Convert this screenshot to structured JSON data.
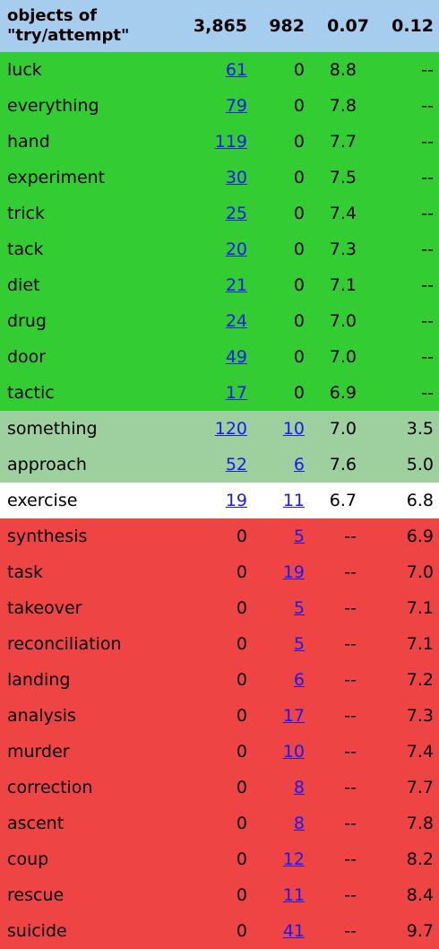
{
  "header": {
    "word_line1": "objects of",
    "word_line2": "\"try/attempt\"",
    "n1": "3,865",
    "n2": "982",
    "s1": "0.07",
    "s2": "0.12"
  },
  "colors": {
    "header": "#a6cdee",
    "green": "#33cc33",
    "lightgreen": "#9ecf9e",
    "white": "#ffffff",
    "red": "#ee4444",
    "link": "#1a1aee"
  },
  "rows": [
    {
      "word": "luck",
      "n1": "61",
      "n2": "0",
      "s1": "8.8",
      "s2": "--",
      "cat": "green"
    },
    {
      "word": "everything",
      "n1": "79",
      "n2": "0",
      "s1": "7.8",
      "s2": "--",
      "cat": "green"
    },
    {
      "word": "hand",
      "n1": "119",
      "n2": "0",
      "s1": "7.7",
      "s2": "--",
      "cat": "green"
    },
    {
      "word": "experiment",
      "n1": "30",
      "n2": "0",
      "s1": "7.5",
      "s2": "--",
      "cat": "green"
    },
    {
      "word": "trick",
      "n1": "25",
      "n2": "0",
      "s1": "7.4",
      "s2": "--",
      "cat": "green"
    },
    {
      "word": "tack",
      "n1": "20",
      "n2": "0",
      "s1": "7.3",
      "s2": "--",
      "cat": "green"
    },
    {
      "word": "diet",
      "n1": "21",
      "n2": "0",
      "s1": "7.1",
      "s2": "--",
      "cat": "green"
    },
    {
      "word": "drug",
      "n1": "24",
      "n2": "0",
      "s1": "7.0",
      "s2": "--",
      "cat": "green"
    },
    {
      "word": "door",
      "n1": "49",
      "n2": "0",
      "s1": "7.0",
      "s2": "--",
      "cat": "green"
    },
    {
      "word": "tactic",
      "n1": "17",
      "n2": "0",
      "s1": "6.9",
      "s2": "--",
      "cat": "green"
    },
    {
      "word": "something",
      "n1": "120",
      "n2": "10",
      "s1": "7.0",
      "s2": "3.5",
      "cat": "lightgreen"
    },
    {
      "word": "approach",
      "n1": "52",
      "n2": "6",
      "s1": "7.6",
      "s2": "5.0",
      "cat": "lightgreen"
    },
    {
      "word": "exercise",
      "n1": "19",
      "n2": "11",
      "s1": "6.7",
      "s2": "6.8",
      "cat": "white"
    },
    {
      "word": "synthesis",
      "n1": "0",
      "n2": "5",
      "s1": "--",
      "s2": "6.9",
      "cat": "red"
    },
    {
      "word": "task",
      "n1": "0",
      "n2": "19",
      "s1": "--",
      "s2": "7.0",
      "cat": "red"
    },
    {
      "word": "takeover",
      "n1": "0",
      "n2": "5",
      "s1": "--",
      "s2": "7.1",
      "cat": "red"
    },
    {
      "word": "reconciliation",
      "n1": "0",
      "n2": "5",
      "s1": "--",
      "s2": "7.1",
      "cat": "red"
    },
    {
      "word": "landing",
      "n1": "0",
      "n2": "6",
      "s1": "--",
      "s2": "7.2",
      "cat": "red"
    },
    {
      "word": "analysis",
      "n1": "0",
      "n2": "17",
      "s1": "--",
      "s2": "7.3",
      "cat": "red"
    },
    {
      "word": "murder",
      "n1": "0",
      "n2": "10",
      "s1": "--",
      "s2": "7.4",
      "cat": "red"
    },
    {
      "word": "correction",
      "n1": "0",
      "n2": "8",
      "s1": "--",
      "s2": "7.7",
      "cat": "red"
    },
    {
      "word": "ascent",
      "n1": "0",
      "n2": "8",
      "s1": "--",
      "s2": "7.8",
      "cat": "red"
    },
    {
      "word": "coup",
      "n1": "0",
      "n2": "12",
      "s1": "--",
      "s2": "8.2",
      "cat": "red"
    },
    {
      "word": "rescue",
      "n1": "0",
      "n2": "11",
      "s1": "--",
      "s2": "8.4",
      "cat": "red"
    },
    {
      "word": "suicide",
      "n1": "0",
      "n2": "41",
      "s1": "--",
      "s2": "9.7",
      "cat": "red"
    }
  ]
}
